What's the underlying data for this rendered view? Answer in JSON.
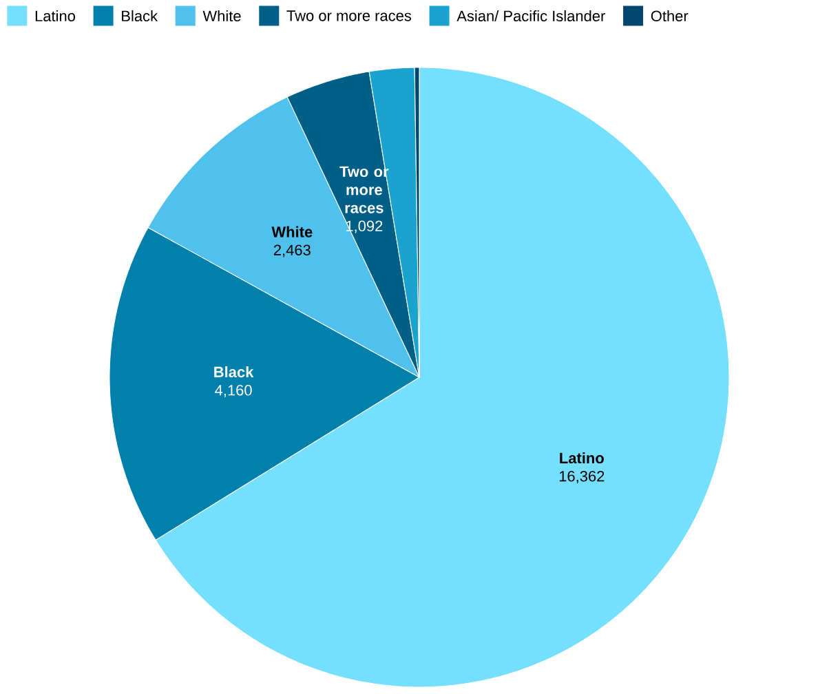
{
  "chart_data": {
    "type": "pie",
    "categories": [
      "Latino",
      "Black",
      "White",
      "Two or more races",
      "Asian/ Pacific Islander",
      "Other"
    ],
    "values": [
      16362,
      4160,
      2463,
      1092,
      580,
      60
    ],
    "colors": [
      "#75e0fd",
      "#0080aa",
      "#4fc1ec",
      "#005f87",
      "#1ba3d0",
      "#00466f"
    ],
    "value_labels": [
      "16,362",
      "4,160",
      "2,463",
      "1,092",
      null,
      null
    ],
    "legend": "top"
  }
}
